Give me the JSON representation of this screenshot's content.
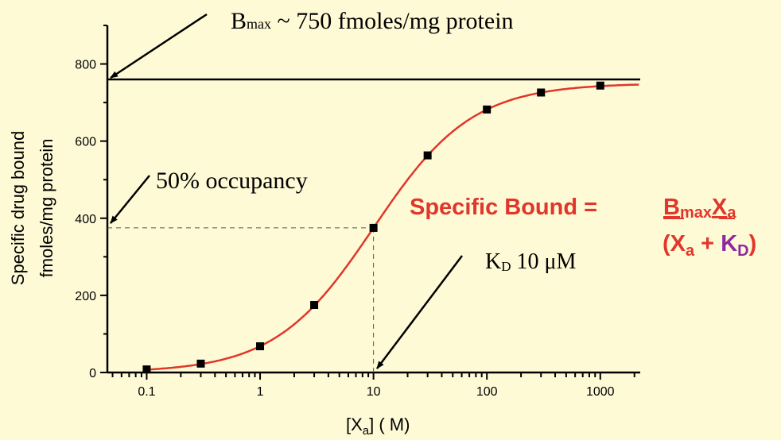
{
  "chart_data": {
    "type": "scatter",
    "x_scale": "log",
    "xlim": [
      0.045,
      2250
    ],
    "ylim": [
      0,
      900
    ],
    "x_ticks": [
      "0.1",
      "1",
      "10",
      "100",
      "1000"
    ],
    "y_ticks": [
      "0",
      "200",
      "400",
      "600",
      "800"
    ],
    "xlabel": {
      "main": "[X",
      "sub": "a",
      "rest": "] (  M)"
    },
    "ylabel": [
      "Specific drug bound",
      "fmoles/mg protein"
    ],
    "series": [
      {
        "type": "scatter",
        "x": [
          0.1,
          0.3,
          1,
          3,
          10,
          30,
          100,
          300,
          1000
        ],
        "y": [
          8,
          23,
          68,
          175,
          375,
          563,
          682,
          726,
          744
        ],
        "color": "#000000",
        "marker": "square"
      },
      {
        "type": "line",
        "model": "Bmax*X/(X+KD)",
        "Bmax": 750,
        "KD": 10,
        "color": "#e0372a"
      }
    ],
    "reference_lines": {
      "bmax_line_y": 760,
      "half_occupancy_y": 375,
      "kd_x": 10
    },
    "annotations": {
      "bmax": {
        "B": "B",
        "sub": "max",
        "rest": " ~ 750 fmoles/mg protein"
      },
      "occupancy": "50% occupancy",
      "kd": {
        "K": "K",
        "sub": "D",
        "rest": " 10 μM"
      },
      "equation": {
        "lhs": "Specific Bound =",
        "num_B": "B",
        "num_max": "max",
        "num_X": "X",
        "num_a": "a",
        "den_open": "(X",
        "den_a": "a",
        "den_plus": " + ",
        "den_K": "K",
        "den_D": "D",
        "den_close": ")"
      }
    },
    "grid": false,
    "colors": {
      "background": "#fefad6",
      "curve": "#e0372a",
      "kd": "#8e2a9e",
      "equation": "#e0372a"
    }
  }
}
